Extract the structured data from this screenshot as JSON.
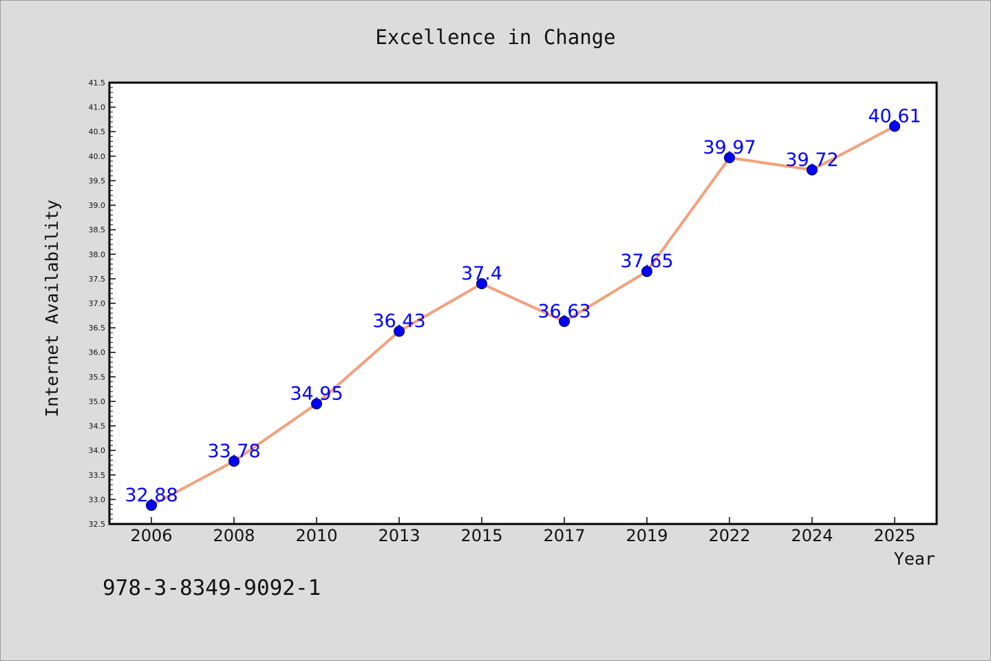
{
  "chart_data": {
    "type": "line",
    "title": "Excellence in Change",
    "xlabel": "Year",
    "ylabel": "Internet Availability",
    "categories": [
      "2006",
      "2008",
      "2010",
      "2013",
      "2015",
      "2017",
      "2019",
      "2022",
      "2024",
      "2025"
    ],
    "series": [
      {
        "values": [
          32.88,
          33.78,
          34.95,
          36.43,
          37.4,
          36.63,
          37.65,
          39.97,
          39.72,
          40.61
        ],
        "data_labels": [
          "32.88",
          "33.78",
          "34.95",
          "36.43",
          "37.4",
          "36.63",
          "37.65",
          "39.97",
          "39.72",
          "40.61"
        ]
      }
    ],
    "ylim": [
      32.5,
      41.5
    ],
    "yticks": [
      "32.5",
      "33.0",
      "33.5",
      "34.0",
      "34.5",
      "35.0",
      "35.5",
      "36.0",
      "36.5",
      "37.0",
      "37.5",
      "38.0",
      "38.5",
      "39.0",
      "39.5",
      "40.0",
      "40.5",
      "41.0",
      "41.5"
    ],
    "grid": false,
    "legend": "none",
    "colors": {
      "line": "#f4a07a",
      "marker": "#0000ff",
      "data_label": "#0000ff",
      "background": "#dcdcdc",
      "plot_background": "#ffffff"
    }
  },
  "footer_text": "978-3-8349-9092-1"
}
